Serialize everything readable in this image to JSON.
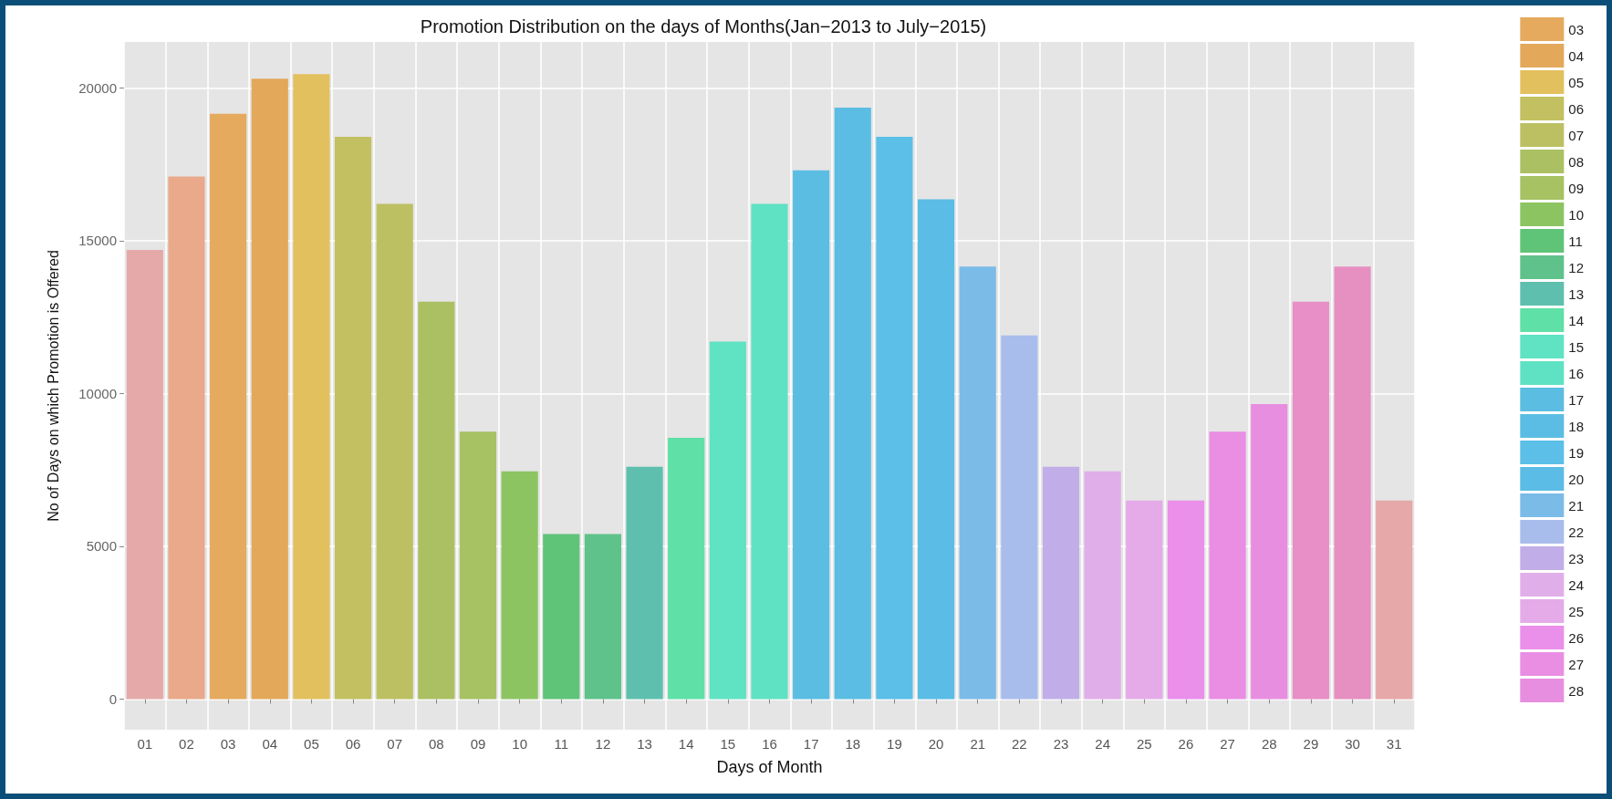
{
  "chart_data": {
    "type": "bar",
    "title": "Promotion Distribution on the days of Months(Jan−2013 to July−2015)",
    "xlabel": "Days of Month",
    "ylabel": "No of Days on which Promotion is Offered",
    "categories": [
      "01",
      "02",
      "03",
      "04",
      "05",
      "06",
      "07",
      "08",
      "09",
      "10",
      "11",
      "12",
      "13",
      "14",
      "15",
      "16",
      "17",
      "18",
      "19",
      "20",
      "21",
      "22",
      "23",
      "24",
      "25",
      "26",
      "27",
      "28",
      "29",
      "30",
      "31"
    ],
    "ylim": [
      -1000,
      21500
    ],
    "yticks": [
      0,
      5000,
      10000,
      15000,
      20000
    ],
    "grid": true,
    "legend": "right",
    "series": [
      {
        "color": "#e6a9a9",
        "values": [
          14700,
          null,
          null,
          null,
          null,
          null,
          null,
          null,
          null,
          null,
          null,
          null,
          null,
          null,
          null,
          null,
          null,
          null,
          null,
          null,
          null,
          null,
          null,
          null,
          null,
          null,
          null,
          null,
          null,
          null,
          null
        ]
      },
      {
        "color": "#e9a98a",
        "values": [
          null,
          17100,
          null,
          null,
          null,
          null,
          null,
          null,
          null,
          null,
          null,
          null,
          null,
          null,
          null,
          null,
          null,
          null,
          null,
          null,
          null,
          null,
          null,
          null,
          null,
          null,
          null,
          null,
          null,
          null,
          null
        ]
      },
      {
        "name": "03",
        "color": "#e5aa5e",
        "values": [
          null,
          null,
          19150,
          null,
          null,
          null,
          null,
          null,
          null,
          null,
          null,
          null,
          null,
          null,
          null,
          null,
          null,
          null,
          null,
          null,
          null,
          null,
          null,
          null,
          null,
          null,
          null,
          null,
          null,
          null,
          null
        ]
      },
      {
        "name": "04",
        "color": "#e3a85a",
        "values": [
          null,
          null,
          null,
          20300,
          null,
          null,
          null,
          null,
          null,
          null,
          null,
          null,
          null,
          null,
          null,
          null,
          null,
          null,
          null,
          null,
          null,
          null,
          null,
          null,
          null,
          null,
          null,
          null,
          null,
          null,
          null
        ]
      },
      {
        "name": "05",
        "color": "#e3c05e",
        "values": [
          null,
          null,
          null,
          null,
          20450,
          null,
          null,
          null,
          null,
          null,
          null,
          null,
          null,
          null,
          null,
          null,
          null,
          null,
          null,
          null,
          null,
          null,
          null,
          null,
          null,
          null,
          null,
          null,
          null,
          null,
          null
        ]
      },
      {
        "name": "06",
        "color": "#c2c060",
        "values": [
          null,
          null,
          null,
          null,
          null,
          18400,
          null,
          null,
          null,
          null,
          null,
          null,
          null,
          null,
          null,
          null,
          null,
          null,
          null,
          null,
          null,
          null,
          null,
          null,
          null,
          null,
          null,
          null,
          null,
          null,
          null
        ]
      },
      {
        "name": "07",
        "color": "#bcc062",
        "values": [
          null,
          null,
          null,
          null,
          null,
          null,
          16200,
          null,
          null,
          null,
          null,
          null,
          null,
          null,
          null,
          null,
          null,
          null,
          null,
          null,
          null,
          null,
          null,
          null,
          null,
          null,
          null,
          null,
          null,
          null,
          null
        ]
      },
      {
        "name": "08",
        "color": "#abc062",
        "values": [
          null,
          null,
          null,
          null,
          null,
          null,
          null,
          13000,
          null,
          null,
          null,
          null,
          null,
          null,
          null,
          null,
          null,
          null,
          null,
          null,
          null,
          null,
          null,
          null,
          null,
          null,
          null,
          null,
          null,
          null,
          null
        ]
      },
      {
        "name": "09",
        "color": "#a6c262",
        "values": [
          null,
          null,
          null,
          null,
          null,
          null,
          null,
          null,
          8750,
          null,
          null,
          null,
          null,
          null,
          null,
          null,
          null,
          null,
          null,
          null,
          null,
          null,
          null,
          null,
          null,
          null,
          null,
          null,
          null,
          null,
          null
        ]
      },
      {
        "name": "10",
        "color": "#8cc462",
        "values": [
          null,
          null,
          null,
          null,
          null,
          null,
          null,
          null,
          null,
          7450,
          null,
          null,
          null,
          null,
          null,
          null,
          null,
          null,
          null,
          null,
          null,
          null,
          null,
          null,
          null,
          null,
          null,
          null,
          null,
          null,
          null
        ]
      },
      {
        "name": "11",
        "color": "#5fc378",
        "values": [
          null,
          null,
          null,
          null,
          null,
          null,
          null,
          null,
          null,
          null,
          5400,
          null,
          null,
          null,
          null,
          null,
          null,
          null,
          null,
          null,
          null,
          null,
          null,
          null,
          null,
          null,
          null,
          null,
          null,
          null,
          null
        ]
      },
      {
        "name": "12",
        "color": "#5fc28a",
        "values": [
          null,
          null,
          null,
          null,
          null,
          null,
          null,
          null,
          null,
          null,
          null,
          5400,
          null,
          null,
          null,
          null,
          null,
          null,
          null,
          null,
          null,
          null,
          null,
          null,
          null,
          null,
          null,
          null,
          null,
          null,
          null
        ]
      },
      {
        "name": "13",
        "color": "#5fbfae",
        "values": [
          null,
          null,
          null,
          null,
          null,
          null,
          null,
          null,
          null,
          null,
          null,
          null,
          7600,
          null,
          null,
          null,
          null,
          null,
          null,
          null,
          null,
          null,
          null,
          null,
          null,
          null,
          null,
          null,
          null,
          null,
          null
        ]
      },
      {
        "name": "14",
        "color": "#5fe0a6",
        "values": [
          null,
          null,
          null,
          null,
          null,
          null,
          null,
          null,
          null,
          null,
          null,
          null,
          null,
          8550,
          null,
          null,
          null,
          null,
          null,
          null,
          null,
          null,
          null,
          null,
          null,
          null,
          null,
          null,
          null,
          null,
          null
        ]
      },
      {
        "name": "15",
        "color": "#5fe3c2",
        "values": [
          null,
          null,
          null,
          null,
          null,
          null,
          null,
          null,
          null,
          null,
          null,
          null,
          null,
          null,
          11700,
          null,
          null,
          null,
          null,
          null,
          null,
          null,
          null,
          null,
          null,
          null,
          null,
          null,
          null,
          null,
          null
        ]
      },
      {
        "name": "16",
        "color": "#5fe2c4",
        "values": [
          null,
          null,
          null,
          null,
          null,
          null,
          null,
          null,
          null,
          null,
          null,
          null,
          null,
          null,
          null,
          16200,
          null,
          null,
          null,
          null,
          null,
          null,
          null,
          null,
          null,
          null,
          null,
          null,
          null,
          null,
          null
        ]
      },
      {
        "name": "17",
        "color": "#5bbde2",
        "values": [
          null,
          null,
          null,
          null,
          null,
          null,
          null,
          null,
          null,
          null,
          null,
          null,
          null,
          null,
          null,
          null,
          17300,
          null,
          null,
          null,
          null,
          null,
          null,
          null,
          null,
          null,
          null,
          null,
          null,
          null,
          null
        ]
      },
      {
        "name": "18",
        "color": "#5bbde3",
        "values": [
          null,
          null,
          null,
          null,
          null,
          null,
          null,
          null,
          null,
          null,
          null,
          null,
          null,
          null,
          null,
          null,
          null,
          19350,
          null,
          null,
          null,
          null,
          null,
          null,
          null,
          null,
          null,
          null,
          null,
          null,
          null
        ]
      },
      {
        "name": "19",
        "color": "#5bbfe8",
        "values": [
          null,
          null,
          null,
          null,
          null,
          null,
          null,
          null,
          null,
          null,
          null,
          null,
          null,
          null,
          null,
          null,
          null,
          null,
          18400,
          null,
          null,
          null,
          null,
          null,
          null,
          null,
          null,
          null,
          null,
          null,
          null
        ]
      },
      {
        "name": "20",
        "color": "#5bbce6",
        "values": [
          null,
          null,
          null,
          null,
          null,
          null,
          null,
          null,
          null,
          null,
          null,
          null,
          null,
          null,
          null,
          null,
          null,
          null,
          null,
          16350,
          null,
          null,
          null,
          null,
          null,
          null,
          null,
          null,
          null,
          null,
          null
        ]
      },
      {
        "name": "21",
        "color": "#7bbbe8",
        "values": [
          null,
          null,
          null,
          null,
          null,
          null,
          null,
          null,
          null,
          null,
          null,
          null,
          null,
          null,
          null,
          null,
          null,
          null,
          null,
          null,
          14150,
          null,
          null,
          null,
          null,
          null,
          null,
          null,
          null,
          null,
          null
        ]
      },
      {
        "name": "22",
        "color": "#a9bdec",
        "values": [
          null,
          null,
          null,
          null,
          null,
          null,
          null,
          null,
          null,
          null,
          null,
          null,
          null,
          null,
          null,
          null,
          null,
          null,
          null,
          null,
          null,
          11900,
          null,
          null,
          null,
          null,
          null,
          null,
          null,
          null,
          null
        ]
      },
      {
        "name": "23",
        "color": "#c1aee8",
        "values": [
          null,
          null,
          null,
          null,
          null,
          null,
          null,
          null,
          null,
          null,
          null,
          null,
          null,
          null,
          null,
          null,
          null,
          null,
          null,
          null,
          null,
          null,
          7600,
          null,
          null,
          null,
          null,
          null,
          null,
          null,
          null
        ]
      },
      {
        "name": "24",
        "color": "#e0aee8",
        "values": [
          null,
          null,
          null,
          null,
          null,
          null,
          null,
          null,
          null,
          null,
          null,
          null,
          null,
          null,
          null,
          null,
          null,
          null,
          null,
          null,
          null,
          null,
          null,
          7450,
          null,
          null,
          null,
          null,
          null,
          null,
          null
        ]
      },
      {
        "name": "25",
        "color": "#e4abe8",
        "values": [
          null,
          null,
          null,
          null,
          null,
          null,
          null,
          null,
          null,
          null,
          null,
          null,
          null,
          null,
          null,
          null,
          null,
          null,
          null,
          null,
          null,
          null,
          null,
          null,
          6500,
          null,
          null,
          null,
          null,
          null,
          null
        ]
      },
      {
        "name": "26",
        "color": "#ea8fea",
        "values": [
          null,
          null,
          null,
          null,
          null,
          null,
          null,
          null,
          null,
          null,
          null,
          null,
          null,
          null,
          null,
          null,
          null,
          null,
          null,
          null,
          null,
          null,
          null,
          null,
          null,
          6500,
          null,
          null,
          null,
          null,
          null
        ]
      },
      {
        "name": "27",
        "color": "#e98ee3",
        "values": [
          null,
          null,
          null,
          null,
          null,
          null,
          null,
          null,
          null,
          null,
          null,
          null,
          null,
          null,
          null,
          null,
          null,
          null,
          null,
          null,
          null,
          null,
          null,
          null,
          null,
          null,
          8750,
          null,
          null,
          null,
          null
        ]
      },
      {
        "name": "28",
        "color": "#e88ee0",
        "values": [
          null,
          null,
          null,
          null,
          null,
          null,
          null,
          null,
          null,
          null,
          null,
          null,
          null,
          null,
          null,
          null,
          null,
          null,
          null,
          null,
          null,
          null,
          null,
          null,
          null,
          null,
          null,
          9650,
          null,
          null,
          null
        ]
      },
      {
        "color": "#e78fc6",
        "values": [
          null,
          null,
          null,
          null,
          null,
          null,
          null,
          null,
          null,
          null,
          null,
          null,
          null,
          null,
          null,
          null,
          null,
          null,
          null,
          null,
          null,
          null,
          null,
          null,
          null,
          null,
          null,
          null,
          13000,
          null,
          null
        ]
      },
      {
        "color": "#e68fc1",
        "values": [
          null,
          null,
          null,
          null,
          null,
          null,
          null,
          null,
          null,
          null,
          null,
          null,
          null,
          null,
          null,
          null,
          null,
          null,
          null,
          null,
          null,
          null,
          null,
          null,
          null,
          null,
          null,
          null,
          null,
          14150,
          null
        ]
      },
      {
        "color": "#e6a8a8",
        "values": [
          null,
          null,
          null,
          null,
          null,
          null,
          null,
          null,
          null,
          null,
          null,
          null,
          null,
          null,
          null,
          null,
          null,
          null,
          null,
          null,
          null,
          null,
          null,
          null,
          null,
          null,
          null,
          null,
          null,
          null,
          6500
        ]
      }
    ]
  }
}
